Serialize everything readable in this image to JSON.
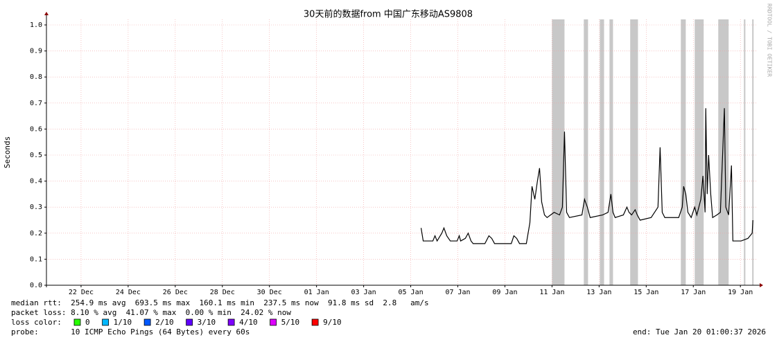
{
  "chart_data": {
    "type": "line",
    "title": "30天前的数据from 中国广东移动AS9808",
    "ylabel": "Seconds",
    "watermark": "RRDTOOL / TOBI OETIKER",
    "xlim": [
      0,
      30.2
    ],
    "ylim": [
      0,
      1
    ],
    "xticks": [
      {
        "value": 1.47,
        "label": "22 Dec"
      },
      {
        "value": 3.47,
        "label": "24 Dec"
      },
      {
        "value": 5.47,
        "label": "26 Dec"
      },
      {
        "value": 7.47,
        "label": "28 Dec"
      },
      {
        "value": 9.47,
        "label": "30 Dec"
      },
      {
        "value": 11.47,
        "label": "01 Jan"
      },
      {
        "value": 13.47,
        "label": "03 Jan"
      },
      {
        "value": 15.47,
        "label": "05 Jan"
      },
      {
        "value": 17.47,
        "label": "07 Jan"
      },
      {
        "value": 19.47,
        "label": "09 Jan"
      },
      {
        "value": 21.47,
        "label": "11 Jan"
      },
      {
        "value": 23.47,
        "label": "13 Jan"
      },
      {
        "value": 25.47,
        "label": "15 Jan"
      },
      {
        "value": 27.47,
        "label": "17 Jan"
      },
      {
        "value": 29.47,
        "label": "19 Jan"
      }
    ],
    "yticks": [
      {
        "value": 0,
        "label": "0.0"
      },
      0.1,
      0.2,
      0.3,
      0.4,
      0.5,
      0.6,
      0.7,
      0.8,
      0.9,
      {
        "value": 1,
        "label": "1.0"
      }
    ],
    "grid": true,
    "loss_periods": [
      [
        21.47,
        22.0
      ],
      [
        22.82,
        23.0
      ],
      [
        23.5,
        23.68
      ],
      [
        23.91,
        24.06
      ],
      [
        24.79,
        25.12
      ],
      [
        26.94,
        27.15
      ],
      [
        27.53,
        27.91
      ],
      [
        28.53,
        28.97
      ],
      [
        29.62,
        29.68
      ],
      [
        29.97,
        30.03
      ]
    ],
    "loss_period_color": "#c8c8c8",
    "series": [
      {
        "color": "#000000",
        "x": [
          15.91,
          16.0,
          16.41,
          16.5,
          16.59,
          16.79,
          16.88,
          17.0,
          17.15,
          17.44,
          17.53,
          17.59,
          17.79,
          17.91,
          18.03,
          18.12,
          18.62,
          18.79,
          18.91,
          19.03,
          19.74,
          19.85,
          19.97,
          20.09,
          20.38,
          20.53,
          20.62,
          20.74,
          20.85,
          20.94,
          21.03,
          21.15,
          21.26,
          21.56,
          21.79,
          21.91,
          22.0,
          22.09,
          22.21,
          22.74,
          22.85,
          22.97,
          23.09,
          23.62,
          23.85,
          23.97,
          24.06,
          24.15,
          24.5,
          24.65,
          24.74,
          24.85,
          25.0,
          25.09,
          25.21,
          25.68,
          25.97,
          26.06,
          26.15,
          26.26,
          26.85,
          27.0,
          27.06,
          27.15,
          27.24,
          27.38,
          27.53,
          27.62,
          27.79,
          27.88,
          27.97,
          28.0,
          28.06,
          28.12,
          28.21,
          28.29,
          28.47,
          28.62,
          28.79,
          28.85,
          28.97,
          29.09,
          29.15,
          29.5,
          29.79,
          29.97,
          30.0
        ],
        "values": [
          0.22,
          0.17,
          0.17,
          0.19,
          0.17,
          0.2,
          0.22,
          0.19,
          0.17,
          0.17,
          0.19,
          0.17,
          0.18,
          0.2,
          0.17,
          0.16,
          0.16,
          0.19,
          0.18,
          0.16,
          0.16,
          0.19,
          0.18,
          0.16,
          0.16,
          0.24,
          0.38,
          0.33,
          0.4,
          0.45,
          0.32,
          0.27,
          0.26,
          0.28,
          0.27,
          0.3,
          0.59,
          0.28,
          0.26,
          0.27,
          0.33,
          0.3,
          0.26,
          0.27,
          0.28,
          0.35,
          0.28,
          0.26,
          0.27,
          0.3,
          0.28,
          0.27,
          0.29,
          0.27,
          0.25,
          0.26,
          0.3,
          0.53,
          0.28,
          0.26,
          0.26,
          0.3,
          0.38,
          0.35,
          0.28,
          0.26,
          0.3,
          0.27,
          0.33,
          0.42,
          0.28,
          0.68,
          0.35,
          0.5,
          0.35,
          0.26,
          0.27,
          0.28,
          0.68,
          0.3,
          0.27,
          0.46,
          0.17,
          0.17,
          0.18,
          0.2,
          0.25
        ]
      }
    ],
    "stats": [
      "median rtt:  254.9 ms avg  693.5 ms max  160.1 ms min  237.5 ms now  91.8 ms sd  2.8   am/s",
      "packet loss: 8.10 % avg  41.07 % max  0.00 % min  24.02 % now"
    ],
    "loss_color_label": "loss color:",
    "loss_colors": [
      {
        "name": "0",
        "color": "#26ff00"
      },
      {
        "name": "1/10",
        "color": "#00b8ff"
      },
      {
        "name": "2/10",
        "color": "#0059ff"
      },
      {
        "name": "3/10",
        "color": "#5e00ff"
      },
      {
        "name": "4/10",
        "color": "#7e00ff"
      },
      {
        "name": "5/10",
        "color": "#dd00ff"
      },
      {
        "name": "9/10",
        "color": "#ff0000"
      }
    ],
    "probe": "probe:       10 ICMP Echo Pings (64 Bytes) every 60s",
    "end": "end: Tue Jan 20 01:00:37 2026"
  }
}
